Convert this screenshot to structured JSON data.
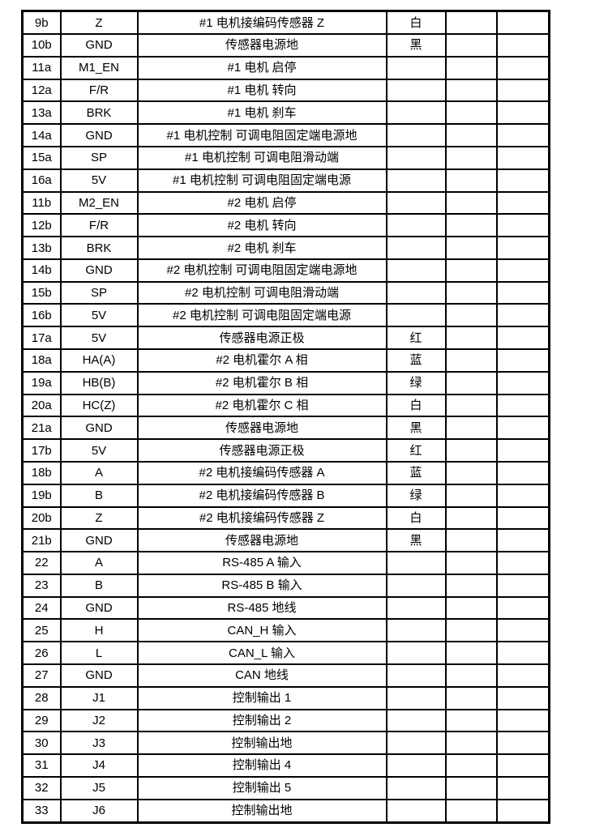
{
  "colors": {
    "background": "#ffffff",
    "border": "#000000",
    "text": "#000000"
  },
  "table": {
    "rows": [
      {
        "pin": "9b",
        "signal": "Z",
        "desc": "#1 电机接编码传感器 Z",
        "color": "白"
      },
      {
        "pin": "10b",
        "signal": "GND",
        "desc": "传感器电源地",
        "color": "黑"
      },
      {
        "pin": "11a",
        "signal": "M1_EN",
        "desc": "#1 电机 启停",
        "color": ""
      },
      {
        "pin": "12a",
        "signal": "F/R",
        "desc": "#1 电机 转向",
        "color": ""
      },
      {
        "pin": "13a",
        "signal": "BRK",
        "desc": "#1 电机 刹车",
        "color": ""
      },
      {
        "pin": "14a",
        "signal": "GND",
        "desc": "#1 电机控制 可调电阻固定端电源地",
        "color": ""
      },
      {
        "pin": "15a",
        "signal": "SP",
        "desc": "#1 电机控制 可调电阻滑动端",
        "color": ""
      },
      {
        "pin": "16a",
        "signal": "5V",
        "desc": "#1 电机控制 可调电阻固定端电源",
        "color": ""
      },
      {
        "pin": "11b",
        "signal": "M2_EN",
        "desc": "#2 电机 启停",
        "color": ""
      },
      {
        "pin": "12b",
        "signal": "F/R",
        "desc": "#2 电机 转向",
        "color": ""
      },
      {
        "pin": "13b",
        "signal": "BRK",
        "desc": "#2 电机 刹车",
        "color": ""
      },
      {
        "pin": "14b",
        "signal": "GND",
        "desc": "#2 电机控制 可调电阻固定端电源地",
        "color": ""
      },
      {
        "pin": "15b",
        "signal": "SP",
        "desc": "#2 电机控制 可调电阻滑动端",
        "color": ""
      },
      {
        "pin": "16b",
        "signal": "5V",
        "desc": "#2 电机控制 可调电阻固定端电源",
        "color": ""
      },
      {
        "pin": "17a",
        "signal": "5V",
        "desc": "传感器电源正极",
        "color": "红"
      },
      {
        "pin": "18a",
        "signal": "HA(A)",
        "desc": "#2 电机霍尔 A 相",
        "color": "蓝"
      },
      {
        "pin": "19a",
        "signal": "HB(B)",
        "desc": "#2 电机霍尔 B 相",
        "color": "绿"
      },
      {
        "pin": "20a",
        "signal": "HC(Z)",
        "desc": "#2 电机霍尔 C 相",
        "color": "白"
      },
      {
        "pin": "21a",
        "signal": "GND",
        "desc": "传感器电源地",
        "color": "黑"
      },
      {
        "pin": "17b",
        "signal": "5V",
        "desc": "传感器电源正极",
        "color": "红"
      },
      {
        "pin": "18b",
        "signal": "A",
        "desc": "#2 电机接编码传感器 A",
        "color": "蓝"
      },
      {
        "pin": "19b",
        "signal": "B",
        "desc": "#2 电机接编码传感器 B",
        "color": "绿"
      },
      {
        "pin": "20b",
        "signal": "Z",
        "desc": "#2 电机接编码传感器 Z",
        "color": "白"
      },
      {
        "pin": "21b",
        "signal": "GND",
        "desc": "传感器电源地",
        "color": "黑"
      },
      {
        "pin": "22",
        "signal": "A",
        "desc": "RS-485 A 输入",
        "color": ""
      },
      {
        "pin": "23",
        "signal": "B",
        "desc": "RS-485 B 输入",
        "color": ""
      },
      {
        "pin": "24",
        "signal": "GND",
        "desc": "RS-485 地线",
        "color": ""
      },
      {
        "pin": "25",
        "signal": "H",
        "desc": "CAN_H 输入",
        "color": ""
      },
      {
        "pin": "26",
        "signal": "L",
        "desc": "CAN_L 输入",
        "color": ""
      },
      {
        "pin": "27",
        "signal": "GND",
        "desc": "CAN 地线",
        "color": ""
      },
      {
        "pin": "28",
        "signal": "J1",
        "desc": "控制输出 1",
        "color": ""
      },
      {
        "pin": "29",
        "signal": "J2",
        "desc": "控制输出 2",
        "color": ""
      },
      {
        "pin": "30",
        "signal": "J3",
        "desc": "控制输出地",
        "color": ""
      },
      {
        "pin": "31",
        "signal": "J4",
        "desc": "控制输出 4",
        "color": ""
      },
      {
        "pin": "32",
        "signal": "J5",
        "desc": "控制输出 5",
        "color": ""
      },
      {
        "pin": "33",
        "signal": "J6",
        "desc": "控制输出地",
        "color": ""
      }
    ]
  }
}
